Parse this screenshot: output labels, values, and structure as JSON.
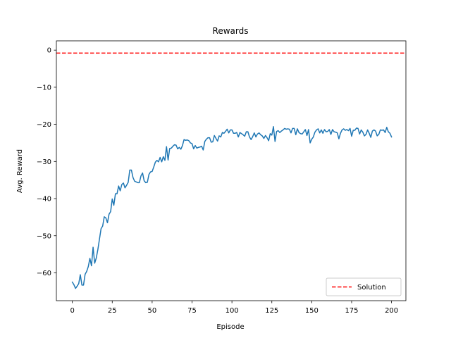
{
  "chart_data": {
    "type": "line",
    "title": "Rewards",
    "xlabel": "Episode",
    "ylabel": "Avg. Reward",
    "xlim": [
      -10,
      209
    ],
    "ylim": [
      -67.5,
      2.5
    ],
    "xticks": [
      0,
      25,
      50,
      75,
      100,
      125,
      150,
      175,
      200
    ],
    "yticks": [
      0,
      -10,
      -20,
      -30,
      -40,
      -50,
      -60
    ],
    "grid": false,
    "legend_position": "lower right",
    "series": [
      {
        "kind": "line",
        "color": "#1f77b4",
        "values": [
          [
            0,
            -62.5
          ],
          [
            1,
            -63.2
          ],
          [
            2,
            -64.2
          ],
          [
            3,
            -63.6
          ],
          [
            4,
            -62.9
          ],
          [
            5,
            -60.5
          ],
          [
            6,
            -63.3
          ],
          [
            7,
            -63.3
          ],
          [
            8,
            -60.4
          ],
          [
            9,
            -59.6
          ],
          [
            10,
            -58.3
          ],
          [
            11,
            -56.1
          ],
          [
            12,
            -58.1
          ],
          [
            13,
            -53.1
          ],
          [
            14,
            -57.4
          ],
          [
            15,
            -56.0
          ],
          [
            16,
            -53.7
          ],
          [
            17,
            -50.9
          ],
          [
            18,
            -48.1
          ],
          [
            19,
            -47.4
          ],
          [
            20,
            -44.9
          ],
          [
            21,
            -45.2
          ],
          [
            22,
            -46.5
          ],
          [
            23,
            -44.2
          ],
          [
            24,
            -43.5
          ],
          [
            25,
            -40.1
          ],
          [
            26,
            -41.8
          ],
          [
            27,
            -38.7
          ],
          [
            28,
            -38.7
          ],
          [
            29,
            -36.6
          ],
          [
            30,
            -37.9
          ],
          [
            31,
            -36.2
          ],
          [
            32,
            -35.8
          ],
          [
            33,
            -37.1
          ],
          [
            34,
            -36.4
          ],
          [
            35,
            -35.6
          ],
          [
            36,
            -32.3
          ],
          [
            37,
            -32.3
          ],
          [
            38,
            -34.3
          ],
          [
            39,
            -35.3
          ],
          [
            40,
            -35.5
          ],
          [
            41,
            -35.7
          ],
          [
            42,
            -35.7
          ],
          [
            43,
            -33.9
          ],
          [
            44,
            -33.1
          ],
          [
            45,
            -35.2
          ],
          [
            46,
            -35.7
          ],
          [
            47,
            -35.6
          ],
          [
            48,
            -33.5
          ],
          [
            49,
            -32.8
          ],
          [
            50,
            -32.7
          ],
          [
            51,
            -31.5
          ],
          [
            52,
            -30.2
          ],
          [
            53,
            -29.7
          ],
          [
            54,
            -30.1
          ],
          [
            55,
            -28.9
          ],
          [
            56,
            -30.1
          ],
          [
            57,
            -28.7
          ],
          [
            58,
            -29.7
          ],
          [
            59,
            -26.0
          ],
          [
            60,
            -29.6
          ],
          [
            61,
            -26.5
          ],
          [
            62,
            -26.4
          ],
          [
            63,
            -25.9
          ],
          [
            64,
            -25.5
          ],
          [
            65,
            -25.6
          ],
          [
            66,
            -26.6
          ],
          [
            67,
            -26.2
          ],
          [
            68,
            -26.7
          ],
          [
            69,
            -25.7
          ],
          [
            70,
            -24.1
          ],
          [
            71,
            -24.3
          ],
          [
            72,
            -24.2
          ],
          [
            73,
            -24.4
          ],
          [
            74,
            -25.0
          ],
          [
            75,
            -25.2
          ],
          [
            76,
            -26.6
          ],
          [
            77,
            -25.7
          ],
          [
            78,
            -26.4
          ],
          [
            79,
            -26.2
          ],
          [
            80,
            -26.1
          ],
          [
            81,
            -25.9
          ],
          [
            82,
            -26.9
          ],
          [
            83,
            -24.6
          ],
          [
            84,
            -24.0
          ],
          [
            85,
            -23.6
          ],
          [
            86,
            -23.6
          ],
          [
            87,
            -24.8
          ],
          [
            88,
            -24.7
          ],
          [
            89,
            -23.0
          ],
          [
            90,
            -23.8
          ],
          [
            91,
            -24.5
          ],
          [
            92,
            -23.1
          ],
          [
            93,
            -23.4
          ],
          [
            94,
            -22.2
          ],
          [
            95,
            -22.4
          ],
          [
            96,
            -21.9
          ],
          [
            97,
            -21.3
          ],
          [
            98,
            -22.3
          ],
          [
            99,
            -21.5
          ],
          [
            100,
            -21.5
          ],
          [
            101,
            -22.4
          ],
          [
            102,
            -22.4
          ],
          [
            103,
            -22.2
          ],
          [
            104,
            -23.4
          ],
          [
            105,
            -22.2
          ],
          [
            106,
            -22.5
          ],
          [
            107,
            -22.8
          ],
          [
            108,
            -23.2
          ],
          [
            109,
            -22.0
          ],
          [
            110,
            -22.0
          ],
          [
            111,
            -23.4
          ],
          [
            112,
            -24.1
          ],
          [
            113,
            -23.3
          ],
          [
            114,
            -22.3
          ],
          [
            115,
            -23.4
          ],
          [
            116,
            -22.6
          ],
          [
            117,
            -22.3
          ],
          [
            118,
            -22.8
          ],
          [
            119,
            -23.1
          ],
          [
            120,
            -23.8
          ],
          [
            121,
            -23.0
          ],
          [
            122,
            -23.6
          ],
          [
            123,
            -24.4
          ],
          [
            124,
            -22.5
          ],
          [
            125,
            -22.9
          ],
          [
            126,
            -20.6
          ],
          [
            127,
            -24.6
          ],
          [
            128,
            -21.9
          ],
          [
            129,
            -21.7
          ],
          [
            130,
            -22.2
          ],
          [
            131,
            -21.8
          ],
          [
            132,
            -21.5
          ],
          [
            133,
            -21.1
          ],
          [
            134,
            -21.3
          ],
          [
            135,
            -21.2
          ],
          [
            136,
            -21.3
          ],
          [
            137,
            -22.3
          ],
          [
            138,
            -21.1
          ],
          [
            139,
            -21.1
          ],
          [
            140,
            -22.8
          ],
          [
            141,
            -21.2
          ],
          [
            142,
            -22.2
          ],
          [
            143,
            -22.5
          ],
          [
            144,
            -22.6
          ],
          [
            145,
            -22.0
          ],
          [
            146,
            -21.4
          ],
          [
            147,
            -23.0
          ],
          [
            148,
            -21.4
          ],
          [
            149,
            -25.0
          ],
          [
            150,
            -24.0
          ],
          [
            151,
            -23.4
          ],
          [
            152,
            -22.1
          ],
          [
            153,
            -21.5
          ],
          [
            154,
            -21.2
          ],
          [
            155,
            -22.3
          ],
          [
            156,
            -21.5
          ],
          [
            157,
            -22.4
          ],
          [
            158,
            -21.4
          ],
          [
            159,
            -22.0
          ],
          [
            160,
            -21.9
          ],
          [
            161,
            -21.4
          ],
          [
            162,
            -22.7
          ],
          [
            163,
            -21.4
          ],
          [
            164,
            -22.0
          ],
          [
            165,
            -22.1
          ],
          [
            166,
            -22.3
          ],
          [
            167,
            -23.9
          ],
          [
            168,
            -22.4
          ],
          [
            169,
            -21.5
          ],
          [
            170,
            -21.2
          ],
          [
            171,
            -21.6
          ],
          [
            172,
            -21.4
          ],
          [
            173,
            -21.7
          ],
          [
            174,
            -21.1
          ],
          [
            175,
            -23.2
          ],
          [
            176,
            -21.6
          ],
          [
            177,
            -21.6
          ],
          [
            178,
            -21.0
          ],
          [
            179,
            -21.1
          ],
          [
            180,
            -22.6
          ],
          [
            181,
            -21.5
          ],
          [
            182,
            -22.1
          ],
          [
            183,
            -23.1
          ],
          [
            184,
            -22.7
          ],
          [
            185,
            -21.5
          ],
          [
            186,
            -22.4
          ],
          [
            187,
            -23.5
          ],
          [
            188,
            -21.8
          ],
          [
            189,
            -21.5
          ],
          [
            190,
            -21.8
          ],
          [
            191,
            -23.1
          ],
          [
            192,
            -22.7
          ],
          [
            193,
            -21.5
          ],
          [
            194,
            -21.6
          ],
          [
            195,
            -21.5
          ],
          [
            196,
            -22.2
          ],
          [
            197,
            -20.8
          ],
          [
            198,
            -22.0
          ],
          [
            199,
            -22.4
          ],
          [
            200,
            -23.4
          ]
        ]
      },
      {
        "name": "Solution",
        "kind": "hline",
        "y": -0.8,
        "color": "#ff0000",
        "linestyle": "dashed"
      }
    ]
  }
}
